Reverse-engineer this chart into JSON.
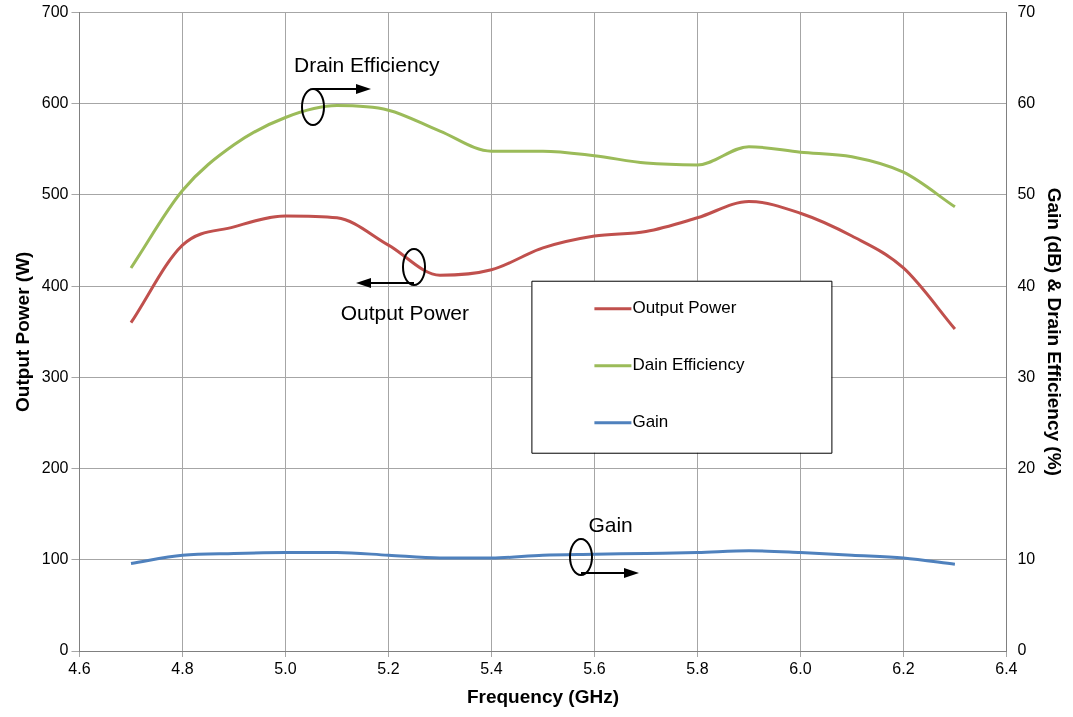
{
  "chart_data": {
    "type": "line",
    "xlabel": "Frequency (GHz)",
    "ylabel": "Output Power (W)",
    "y2label": "Gain (dB) & Drain Efficiency (%)",
    "x": [
      4.7,
      4.8,
      4.9,
      5.0,
      5.1,
      5.2,
      5.3,
      5.4,
      5.5,
      5.6,
      5.7,
      5.8,
      5.9,
      6.0,
      6.1,
      6.2,
      6.3
    ],
    "xlim": [
      4.6,
      6.4
    ],
    "xticks": [
      {
        "value": 4.6,
        "label": "4.6"
      },
      {
        "value": 4.8,
        "label": "4.8"
      },
      {
        "value": 5.0,
        "label": "5.0"
      },
      {
        "value": 5.2,
        "label": "5.2"
      },
      {
        "value": 5.4,
        "label": "5.4"
      },
      {
        "value": 5.6,
        "label": "5.6"
      },
      {
        "value": 5.8,
        "label": "5.8"
      },
      {
        "value": 6.0,
        "label": "6.0"
      },
      {
        "value": 6.2,
        "label": "6.2"
      },
      {
        "value": 6.4,
        "label": "6.4"
      }
    ],
    "ylim": [
      0,
      700
    ],
    "yticks": [
      0,
      100,
      200,
      300,
      400,
      500,
      600,
      700
    ],
    "y2lim": [
      0,
      70
    ],
    "y2ticks": [
      0,
      10,
      20,
      30,
      40,
      50,
      60,
      70
    ],
    "grid": true,
    "legend": "center",
    "marker": "none",
    "line_style": "solid",
    "series": [
      {
        "name": "Output Power",
        "color": "#c0504d",
        "values": [
          360,
          445,
          465,
          477,
          475,
          445,
          412,
          418,
          442,
          455,
          460,
          475,
          493,
          480,
          455,
          420,
          353
        ]
      },
      {
        "name": "Dain Efficiency",
        "color": "#9bbb59",
        "axis": "y2",
        "values": [
          42,
          50.5,
          55.5,
          58.5,
          59.8,
          59.3,
          57,
          54.8,
          54.8,
          54.3,
          53.5,
          53.3,
          55.3,
          54.7,
          54.2,
          52.5,
          48.7
        ]
      },
      {
        "name": "Gain",
        "color": "#4f81bd",
        "axis": "y2",
        "values": [
          9.6,
          10.5,
          10.7,
          10.8,
          10.8,
          10.5,
          10.2,
          10.2,
          10.5,
          10.6,
          10.7,
          10.8,
          11.0,
          10.8,
          10.5,
          10.2,
          9.5
        ]
      }
    ],
    "annotations": [
      "Drain Efficiency",
      "Output Power",
      "Gain"
    ]
  }
}
